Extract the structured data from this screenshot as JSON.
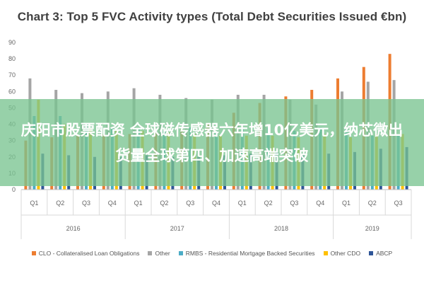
{
  "page": {
    "overlay_text": "庆阳市股票配资 全球磁传感器六年增10亿美元，纳芯微出货量全球第四、加速高端突破"
  },
  "chart_data": {
    "type": "bar",
    "title": "Chart 3: Top 5 FVC Activity types (Total Debt Securities Issued €bn)",
    "xlabel": "",
    "ylabel": "",
    "ylim": [
      0,
      90
    ],
    "yticks": [
      0,
      10,
      20,
      30,
      40,
      50,
      60,
      70,
      80,
      90
    ],
    "grid": false,
    "legend_position": "bottom",
    "categories": [
      "Q1",
      "Q2",
      "Q3",
      "Q4",
      "Q1",
      "Q2",
      "Q3",
      "Q4",
      "Q1",
      "Q2",
      "Q3",
      "Q4",
      "Q1",
      "Q2",
      "Q3"
    ],
    "year_groups": [
      {
        "label": "2016",
        "count": 4
      },
      {
        "label": "2017",
        "count": 4
      },
      {
        "label": "2018",
        "count": 4
      },
      {
        "label": "2019",
        "count": 3
      }
    ],
    "series": [
      {
        "name": "CLO - Collateralised Loan Obligations",
        "color": "#ED7D31",
        "values": [
          30,
          32,
          33,
          34,
          34,
          35,
          37,
          40,
          47,
          53,
          57,
          61,
          68,
          75,
          83
        ]
      },
      {
        "name": "Other",
        "color": "#A5A5A5",
        "values": [
          68,
          61,
          59,
          60,
          62,
          58,
          56,
          55,
          58,
          58,
          55,
          52,
          60,
          66,
          67
        ]
      },
      {
        "name": "RMBS - Residential Mortgage Backed Securities",
        "color": "#4BACC6",
        "values": [
          45,
          45,
          40,
          38,
          37,
          36,
          38,
          36,
          38,
          38,
          36,
          38,
          37,
          33,
          33
        ]
      },
      {
        "name": "Other CDO",
        "color": "#FFC000",
        "values": [
          55,
          40,
          37,
          36,
          36,
          35,
          34,
          33,
          33,
          33,
          32,
          34,
          32,
          34,
          34
        ]
      },
      {
        "name": "ABCP",
        "color": "#2E5597",
        "values": [
          22,
          21,
          20,
          20,
          21,
          20,
          20,
          21,
          22,
          23,
          22,
          22,
          23,
          25,
          26
        ]
      }
    ]
  }
}
